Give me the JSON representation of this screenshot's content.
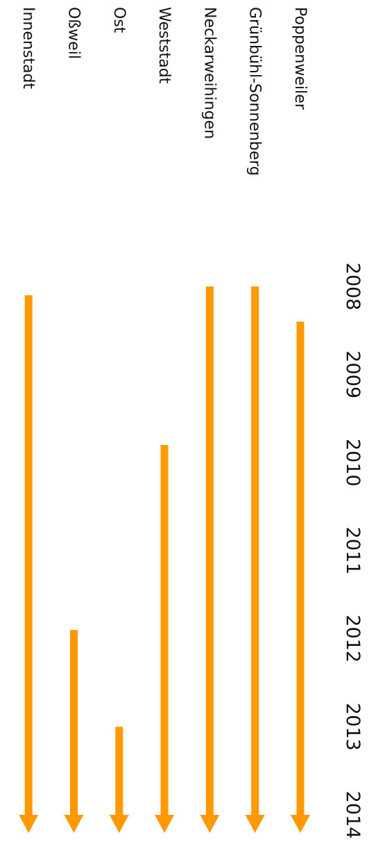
{
  "chart_data": {
    "type": "bar",
    "orientation": "horizontal-arrows",
    "categories": [
      "Poppenweiler",
      "Grünbühl-Sonnenberg",
      "Neckarweihingen",
      "Weststadt",
      "Ost",
      "Oßweil",
      "Innenstadt"
    ],
    "x_ticks": [
      "2008",
      "2009",
      "2010",
      "2011",
      "2012",
      "2013",
      "2014"
    ],
    "xlim": [
      2008,
      2014
    ],
    "series": [
      {
        "start": [
          2008.4,
          2008.0,
          2008.0,
          2009.8,
          2013.0,
          2011.9,
          2008.1
        ],
        "end": [
          2014,
          2014,
          2014,
          2014,
          2014,
          2014,
          2014
        ]
      }
    ],
    "colors": {
      "arrow": "#FF9900"
    },
    "grid": false,
    "legend": "none"
  }
}
